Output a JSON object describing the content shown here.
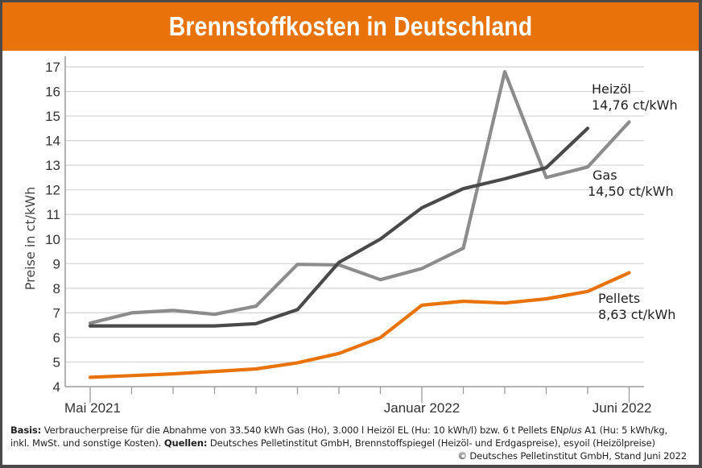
{
  "title": "Brennstoffkosten in Deutschland",
  "colors": {
    "title_bar": "#e8730a",
    "heizoel": "#8c8c8c",
    "gas": "#4a4a4a",
    "pellets": "#e8730a",
    "grid": "#d4d4d4",
    "axis": "#9a9a9a"
  },
  "chart_data": {
    "type": "line",
    "title": "Brennstoffkosten in Deutschland",
    "xlabel": "",
    "ylabel": "Preise in ct/kWh",
    "ylim": [
      4,
      17
    ],
    "yticks": [
      4,
      5,
      6,
      7,
      8,
      9,
      10,
      11,
      12,
      13,
      14,
      15,
      16,
      17
    ],
    "grid": true,
    "x": [
      "2021-05",
      "2021-06",
      "2021-07",
      "2021-08",
      "2021-09",
      "2021-10",
      "2021-11",
      "2021-12",
      "2022-01",
      "2022-02",
      "2022-03",
      "2022-04",
      "2022-05",
      "2022-06"
    ],
    "x_tick_labels": [
      {
        "index": 0,
        "label": "Mai 2021"
      },
      {
        "index": 8,
        "label": "Januar 2022"
      },
      {
        "index": 13,
        "label": "Juni 2022"
      }
    ],
    "series": [
      {
        "name": "Heizöl",
        "color_key": "heizoel",
        "label_lines": [
          "Heizöl",
          "14,76 ct/kWh"
        ],
        "values": [
          6.58,
          7.0,
          7.1,
          6.94,
          7.27,
          8.97,
          8.95,
          8.35,
          8.8,
          9.63,
          16.8,
          12.5,
          12.93,
          14.76
        ]
      },
      {
        "name": "Gas",
        "color_key": "gas",
        "label_lines": [
          "Gas",
          "14,50 ct/kWh"
        ],
        "values": [
          6.47,
          6.47,
          6.47,
          6.47,
          6.56,
          7.13,
          9.05,
          10.0,
          11.27,
          12.05,
          12.45,
          12.9,
          14.5,
          null
        ]
      },
      {
        "name": "Pellets",
        "color_key": "pellets",
        "label_lines": [
          "Pellets",
          "8,63 ct/kWh"
        ],
        "values": [
          4.38,
          4.45,
          4.52,
          4.62,
          4.72,
          4.97,
          5.35,
          5.99,
          7.31,
          7.47,
          7.4,
          7.57,
          7.87,
          8.63
        ]
      }
    ]
  },
  "footer": {
    "basis_label": "Basis:",
    "basis_text_1": " Verbraucherpreise für die Abnahme von 33.540 kWh Gas (Ho), 3.000 l Heizöl EL (Hu: 10 kWh/l) bzw. 6 t Pellets EN",
    "basis_italic": "plus",
    "basis_text_2": " A1 (Hu: 5 kWh/kg,",
    "line2_text": "inkl. MwSt. und sonstige Kosten). ",
    "sources_label": "Quellen:",
    "sources_text": " Deutsches Pelletinstitut GmbH, Brennstoffspiegel (Heizöl- und Erdgaspreise), esyoil (Heizölpreise)",
    "copyright": "© Deutsches Pelletinstitut GmbH, Stand Juni 2022"
  }
}
